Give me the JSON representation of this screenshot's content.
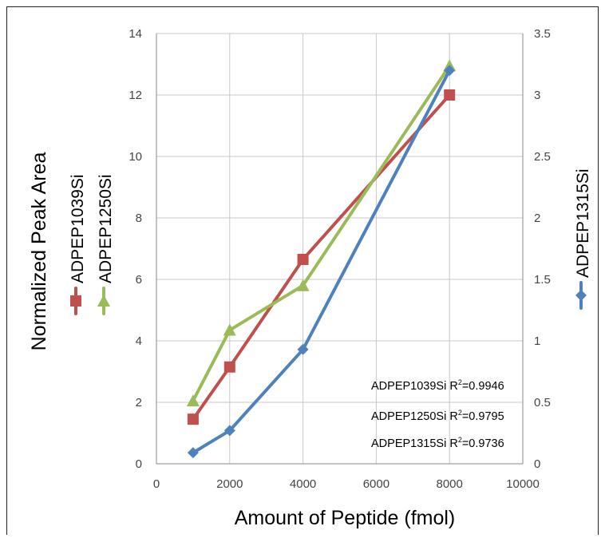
{
  "chart_data": {
    "type": "line",
    "xlabel": "Amount of Peptide (fmol)",
    "ylabel_left": "Normalized Peak Area",
    "xlim": [
      0,
      10000
    ],
    "x_ticks": [
      0,
      2000,
      4000,
      6000,
      8000,
      10000
    ],
    "ylim_left": [
      0,
      14
    ],
    "y_left_ticks": [
      0,
      2,
      4,
      6,
      8,
      10,
      12,
      14
    ],
    "ylim_right": [
      0,
      3.5
    ],
    "y_right_ticks": [
      0,
      0.5,
      1,
      1.5,
      2,
      2.5,
      3,
      3.5
    ],
    "grid": true,
    "series": [
      {
        "name": "ADPEP1039Si",
        "axis": "left",
        "color": "#c0504d",
        "marker": "square",
        "x": [
          1000,
          2000,
          4000,
          8000
        ],
        "y": [
          1.45,
          3.15,
          6.65,
          12.0
        ]
      },
      {
        "name": "ADPEP1250Si",
        "axis": "left",
        "color": "#9bbb59",
        "marker": "triangle",
        "x": [
          1000,
          2000,
          4000,
          8000
        ],
        "y": [
          2.05,
          4.35,
          5.8,
          12.95
        ]
      },
      {
        "name": "ADPEP1315Si",
        "axis": "right",
        "color": "#4f81bd",
        "marker": "diamond",
        "x": [
          1000,
          2000,
          4000,
          8000
        ],
        "y": [
          0.09,
          0.27,
          0.93,
          3.2
        ]
      }
    ],
    "annotations": [
      {
        "series": "ADPEP1039Si",
        "r2_label": "R",
        "r2_sup": "2",
        "r2_value": "=0.9946"
      },
      {
        "series": "ADPEP1250Si",
        "r2_label": "R",
        "r2_sup": "2",
        "r2_value": "=0.9795"
      },
      {
        "series": "ADPEP1315Si",
        "r2_label": "R",
        "r2_sup": "2",
        "r2_value": "=0.9736"
      }
    ]
  }
}
